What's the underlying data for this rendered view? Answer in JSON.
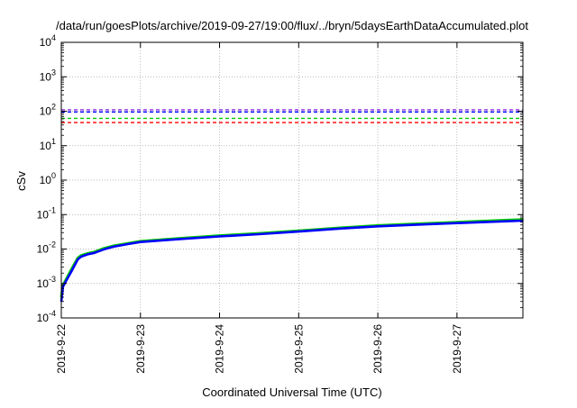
{
  "chart_data": {
    "type": "line",
    "title": "/data/run/goesPlots/archive/2019-09-27/19:00/flux/../bryn/5daysEarthDataAccumulated.plot",
    "xlabel": "Coordinated Universal Time (UTC)",
    "ylabel": "cSv",
    "y_scale": "log",
    "ylim": [
      0.0001,
      10000
    ],
    "xlim": [
      "2019-09-22",
      "2019-09-27T20:00"
    ],
    "grid": true,
    "x_ticks": [
      "2019-9-22",
      "2019-9-23",
      "2019-9-24",
      "2019-9-25",
      "2019-9-26",
      "2019-9-27"
    ],
    "y_ticks": [
      {
        "base": "10",
        "exp": "-4"
      },
      {
        "base": "10",
        "exp": "-3"
      },
      {
        "base": "10",
        "exp": "-2"
      },
      {
        "base": "10",
        "exp": "-1"
      },
      {
        "base": "10",
        "exp": "0"
      },
      {
        "base": "10",
        "exp": "1"
      },
      {
        "base": "10",
        "exp": "2"
      },
      {
        "base": "10",
        "exp": "3"
      },
      {
        "base": "10",
        "exp": "4"
      }
    ],
    "thresholds": [
      {
        "value": 110,
        "color": "#8a2be2"
      },
      {
        "value": 95,
        "color": "#0000ff"
      },
      {
        "value": 62,
        "color": "#00cc00"
      },
      {
        "value": 47,
        "color": "#ff0000"
      }
    ],
    "series": [
      {
        "color": "#00cc00",
        "x": [
          "2019-09-22T00:00",
          "2019-09-22T00:30",
          "2019-09-22T01:00",
          "2019-09-22T03:00",
          "2019-09-22T05:00",
          "2019-09-22T06:00",
          "2019-09-22T08:00",
          "2019-09-22T10:00",
          "2019-09-22T13:00",
          "2019-09-22T16:00",
          "2019-09-22T20:00",
          "2019-09-23T00:00",
          "2019-09-23T12:00",
          "2019-09-24T00:00",
          "2019-09-24T12:00",
          "2019-09-25T00:00",
          "2019-09-25T12:00",
          "2019-09-26T00:00",
          "2019-09-26T12:00",
          "2019-09-27T00:00",
          "2019-09-27T12:00",
          "2019-09-27T20:00"
        ],
        "y": [
          0.0004,
          0.0009,
          0.0011,
          0.0025,
          0.0055,
          0.0065,
          0.0075,
          0.0082,
          0.0105,
          0.0125,
          0.0145,
          0.0168,
          0.0205,
          0.0245,
          0.0285,
          0.034,
          0.041,
          0.048,
          0.054,
          0.06,
          0.067,
          0.072
        ]
      },
      {
        "color": "#0000ff",
        "x": [
          "2019-09-22T00:00",
          "2019-09-22T00:30",
          "2019-09-22T01:00",
          "2019-09-22T03:00",
          "2019-09-22T05:00",
          "2019-09-22T06:00",
          "2019-09-22T08:00",
          "2019-09-22T10:00",
          "2019-09-22T13:00",
          "2019-09-22T16:00",
          "2019-09-22T20:00",
          "2019-09-23T00:00",
          "2019-09-23T12:00",
          "2019-09-24T00:00",
          "2019-09-24T12:00",
          "2019-09-25T00:00",
          "2019-09-25T12:00",
          "2019-09-26T00:00",
          "2019-09-26T12:00",
          "2019-09-27T00:00",
          "2019-09-27T12:00",
          "2019-09-27T20:00"
        ],
        "y": [
          0.0003,
          0.0008,
          0.001,
          0.0022,
          0.005,
          0.006,
          0.007,
          0.0077,
          0.0098,
          0.0118,
          0.0138,
          0.016,
          0.0195,
          0.0232,
          0.027,
          0.0322,
          0.039,
          0.0455,
          0.051,
          0.0565,
          0.0625,
          0.0665
        ]
      }
    ]
  }
}
